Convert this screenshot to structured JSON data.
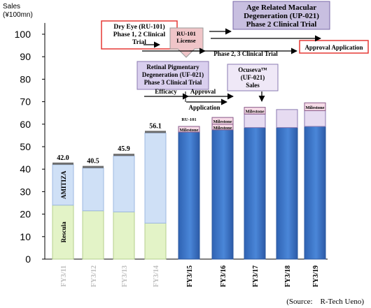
{
  "chart_data": {
    "type": "bar",
    "ylabel": "Sales",
    "yunit": "(¥100mn)",
    "ylim": [
      0,
      105
    ],
    "yticks": [
      0,
      10,
      20,
      30,
      40,
      50,
      60,
      70,
      80,
      90,
      100
    ],
    "grid": false,
    "categories": [
      "FY3/11",
      "FY3/12",
      "FY3/13",
      "FY3/14",
      "FY3/15",
      "FY3/16",
      "FY3/17",
      "FY3/18",
      "FY3/19"
    ],
    "bars": [
      {
        "category": "FY3/11",
        "kind": "actual",
        "total": 42.0,
        "total_label": "42.0",
        "segments": [
          {
            "name": "Rescula",
            "value": 24,
            "label": "Rescula"
          },
          {
            "name": "AMITIZA",
            "value": 18,
            "label": "AMITIZA"
          }
        ]
      },
      {
        "category": "FY3/12",
        "kind": "actual",
        "total": 40.5,
        "total_label": "40.5",
        "segments": [
          {
            "name": "Rescula",
            "value": 21.5
          },
          {
            "name": "AMITIZA",
            "value": 19
          }
        ]
      },
      {
        "category": "FY3/13",
        "kind": "actual",
        "total": 45.9,
        "total_label": "45.9",
        "segments": [
          {
            "name": "Rescula",
            "value": 21
          },
          {
            "name": "AMITIZA",
            "value": 24.9
          }
        ]
      },
      {
        "category": "FY3/14",
        "kind": "actual",
        "total": 56.1,
        "total_label": "56.1",
        "segments": [
          {
            "name": "Rescula",
            "value": 16
          },
          {
            "name": "AMITIZA",
            "value": 40.1
          }
        ]
      },
      {
        "category": "FY3/15",
        "kind": "forecast",
        "total": 59,
        "segments": [
          {
            "name": "Base",
            "value": 56.5
          },
          {
            "name": "Milestone",
            "value": 2.5,
            "label": "Milestone"
          }
        ]
      },
      {
        "category": "FY3/16",
        "kind": "forecast",
        "total": 63,
        "segments": [
          {
            "name": "Base",
            "value": 57.5
          },
          {
            "name": "Milestone",
            "value": 2.5,
            "label": "Milestone"
          },
          {
            "name": "Milestone",
            "value": 3,
            "label": "Milestone"
          }
        ]
      },
      {
        "category": "FY3/17",
        "kind": "forecast",
        "total": 67.5,
        "segments": [
          {
            "name": "Base",
            "value": 58.5
          },
          {
            "name": "Sales",
            "value": 6
          },
          {
            "name": "Milestone",
            "value": 3,
            "label": "Milestone"
          }
        ]
      },
      {
        "category": "FY3/18",
        "kind": "forecast",
        "total": 66.5,
        "segments": [
          {
            "name": "Base",
            "value": 58.5
          },
          {
            "name": "Sales",
            "value": 8
          }
        ]
      },
      {
        "category": "FY3/19",
        "kind": "forecast",
        "total": 69.5,
        "segments": [
          {
            "name": "Base",
            "value": 59
          },
          {
            "name": "Sales",
            "value": 7
          },
          {
            "name": "Milestone",
            "value": 3.5,
            "label": "Milestone"
          }
        ]
      }
    ],
    "small_labels": {
      "ru101_above_fy15": "RU-101"
    },
    "callouts": {
      "dry_eye": "Dry Eye (RU-101)\nPhase 1, 2 Clinical\nTrial",
      "ru101_license": "RU-101\nLicense",
      "amd": "Age Related Macular\nDegeneration (UP-021)\nPhase 2 Clinical Trial",
      "phase23": "Phase 2, 3 Clinical Trial",
      "approval_app": "Approval Application",
      "rp": "Retinal Pigmentary\nDegeneration (UF-021)\nPhase 3 Clinical Trial",
      "ocuseva": "Ocuseva™\n(UF-021)\nSales",
      "efficacy": "Efficacy",
      "approval": "Approval",
      "application": "Application"
    },
    "colors": {
      "rescula": "#e3f3c7",
      "amitiza": "#cfe0f6",
      "forecast_blue": "#3a74c9",
      "milestone_pink": "#f6dbe7",
      "sales_lavender": "#e6dbf1",
      "ru101_box": "#f0c5c8",
      "amd_box": "#c8bfe0",
      "rp_box": "#d9cfee",
      "red_border": "#e53935"
    }
  },
  "source": "(Source:　R-Tech Ueno)"
}
